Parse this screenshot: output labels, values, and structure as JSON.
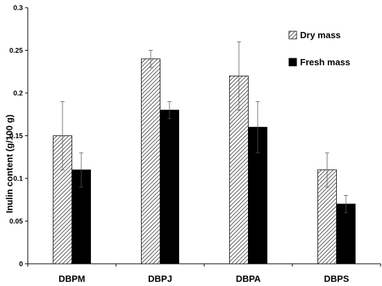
{
  "chart_data": {
    "type": "bar",
    "categories": [
      "DBPM",
      "DBPJ",
      "DBPA",
      "DBPS"
    ],
    "series": [
      {
        "name": "Dry mass",
        "values": [
          0.15,
          0.24,
          0.22,
          0.11
        ],
        "errors": [
          0.04,
          0.01,
          0.04,
          0.02
        ],
        "fill": "hatched"
      },
      {
        "name": "Fresh mass",
        "values": [
          0.11,
          0.18,
          0.16,
          0.07
        ],
        "errors": [
          0.02,
          0.01,
          0.03,
          0.01
        ],
        "fill": "#000000"
      }
    ],
    "ylabel": "Inulin content (g/100 g)",
    "xlabel": "",
    "ylim": [
      0,
      0.3
    ],
    "yticks": [
      "0",
      "0.05",
      "0.1",
      "0.15",
      "0.2",
      "0.25",
      "0.3"
    ],
    "ytick_values": [
      0,
      0.05,
      0.1,
      0.15,
      0.2,
      0.25,
      0.3
    ],
    "legend_position": "top-right",
    "grid": false
  }
}
